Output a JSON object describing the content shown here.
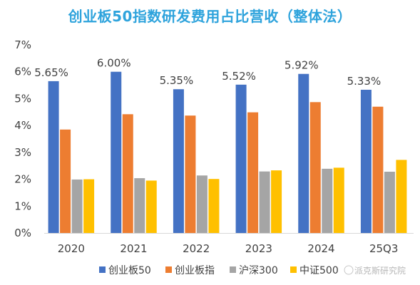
{
  "chart_data": {
    "type": "bar",
    "title": "创业板50指数研发费用占比营收（整体法）",
    "xlabel": "",
    "ylabel": "",
    "ylim": [
      0,
      7
    ],
    "y_ticks": [
      "0%",
      "1%",
      "2%",
      "3%",
      "4%",
      "5%",
      "6%",
      "7%"
    ],
    "categories": [
      "2020",
      "2021",
      "2022",
      "2023",
      "2024",
      "25Q3"
    ],
    "series": [
      {
        "name": "创业板50",
        "color": "#4472c4",
        "values": [
          5.65,
          6.0,
          5.35,
          5.52,
          5.92,
          5.33
        ]
      },
      {
        "name": "创业板指",
        "color": "#ed7d31",
        "values": [
          3.85,
          4.42,
          4.37,
          4.49,
          4.87,
          4.7
        ]
      },
      {
        "name": "沪深300",
        "color": "#a5a5a5",
        "values": [
          1.99,
          2.04,
          2.14,
          2.29,
          2.39,
          2.28
        ]
      },
      {
        "name": "中证500",
        "color": "#ffc000",
        "values": [
          2.0,
          1.95,
          2.01,
          2.33,
          2.43,
          2.72
        ]
      }
    ],
    "data_labels": [
      "5.65%",
      "6.00%",
      "5.35%",
      "5.52%",
      "5.92%",
      "5.33%"
    ],
    "grid": false,
    "legend_position": "bottom"
  },
  "watermark": "派克斯研究院"
}
